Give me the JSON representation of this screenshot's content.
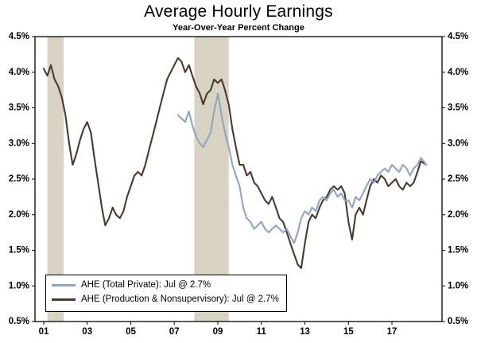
{
  "page": {
    "background": "#ffffff"
  },
  "chart_data": {
    "type": "line",
    "title": "Average Hourly Earnings",
    "subtitle": "Year-Over-Year Percent Change",
    "x_range": [
      2000.6,
      2019.3
    ],
    "y_range": [
      0.5,
      4.5
    ],
    "grid": false,
    "legend_position": "bottom-left",
    "y_ticks": [
      {
        "value": 0.5,
        "label": "0.5%"
      },
      {
        "value": 1.0,
        "label": "1.0%"
      },
      {
        "value": 1.5,
        "label": "1.5%"
      },
      {
        "value": 2.0,
        "label": "2.0%"
      },
      {
        "value": 2.5,
        "label": "2.5%"
      },
      {
        "value": 3.0,
        "label": "3.0%"
      },
      {
        "value": 3.5,
        "label": "3.5%"
      },
      {
        "value": 4.0,
        "label": "4.0%"
      },
      {
        "value": 4.5,
        "label": "4.5%"
      }
    ],
    "x_ticks": [
      {
        "value": 2001,
        "label": "01"
      },
      {
        "value": 2003,
        "label": "03"
      },
      {
        "value": 2005,
        "label": "05"
      },
      {
        "value": 2007,
        "label": "07"
      },
      {
        "value": 2009,
        "label": "09"
      },
      {
        "value": 2011,
        "label": "11"
      },
      {
        "value": 2013,
        "label": "13"
      },
      {
        "value": 2015,
        "label": "15"
      },
      {
        "value": 2017,
        "label": "17"
      }
    ],
    "colors": {
      "recession_band": "#d9d3c4",
      "axis": "#000000",
      "text": "#000000"
    },
    "recession_bands": [
      [
        2001.17,
        2001.92
      ],
      [
        2007.92,
        2009.5
      ]
    ],
    "series": [
      {
        "name": "AHE Total Private",
        "label": "AHE (Total Private): Jul @ 2.7%",
        "latest": "Jul @ 2.7%",
        "color": "#8ea6c3",
        "points": [
          [
            2007.17,
            3.4
          ],
          [
            2007.33,
            3.35
          ],
          [
            2007.5,
            3.3
          ],
          [
            2007.67,
            3.45
          ],
          [
            2007.83,
            3.25
          ],
          [
            2008.0,
            3.1
          ],
          [
            2008.17,
            3.0
          ],
          [
            2008.33,
            2.95
          ],
          [
            2008.5,
            3.05
          ],
          [
            2008.67,
            3.15
          ],
          [
            2008.83,
            3.45
          ],
          [
            2009.0,
            3.7
          ],
          [
            2009.17,
            3.4
          ],
          [
            2009.33,
            3.15
          ],
          [
            2009.5,
            2.95
          ],
          [
            2009.67,
            2.7
          ],
          [
            2009.83,
            2.55
          ],
          [
            2010.0,
            2.4
          ],
          [
            2010.17,
            2.1
          ],
          [
            2010.33,
            1.95
          ],
          [
            2010.5,
            1.9
          ],
          [
            2010.67,
            1.8
          ],
          [
            2010.83,
            1.85
          ],
          [
            2011.0,
            1.9
          ],
          [
            2011.17,
            1.8
          ],
          [
            2011.33,
            1.75
          ],
          [
            2011.5,
            1.8
          ],
          [
            2011.67,
            1.85
          ],
          [
            2011.83,
            1.8
          ],
          [
            2012.0,
            1.75
          ],
          [
            2012.17,
            1.8
          ],
          [
            2012.33,
            1.7
          ],
          [
            2012.5,
            1.6
          ],
          [
            2012.67,
            1.75
          ],
          [
            2012.83,
            1.95
          ],
          [
            2013.0,
            2.05
          ],
          [
            2013.17,
            2.0
          ],
          [
            2013.33,
            2.1
          ],
          [
            2013.5,
            2.05
          ],
          [
            2013.67,
            2.2
          ],
          [
            2013.83,
            2.25
          ],
          [
            2014.0,
            2.2
          ],
          [
            2014.17,
            2.3
          ],
          [
            2014.33,
            2.35
          ],
          [
            2014.5,
            2.25
          ],
          [
            2014.67,
            2.3
          ],
          [
            2014.83,
            2.2
          ],
          [
            2015.0,
            2.2
          ],
          [
            2015.17,
            2.1
          ],
          [
            2015.33,
            2.25
          ],
          [
            2015.5,
            2.2
          ],
          [
            2015.67,
            2.3
          ],
          [
            2015.83,
            2.4
          ],
          [
            2016.0,
            2.5
          ],
          [
            2016.17,
            2.45
          ],
          [
            2016.33,
            2.55
          ],
          [
            2016.5,
            2.6
          ],
          [
            2016.67,
            2.65
          ],
          [
            2016.83,
            2.6
          ],
          [
            2017.0,
            2.7
          ],
          [
            2017.17,
            2.65
          ],
          [
            2017.33,
            2.6
          ],
          [
            2017.5,
            2.7
          ],
          [
            2017.67,
            2.65
          ],
          [
            2017.83,
            2.55
          ],
          [
            2018.0,
            2.65
          ],
          [
            2018.17,
            2.7
          ],
          [
            2018.33,
            2.8
          ],
          [
            2018.58,
            2.7
          ]
        ]
      },
      {
        "name": "AHE Production & Nonsupervisory",
        "label": "AHE (Production & Nonsupervisory): Jul @ 2.7%",
        "latest": "Jul @ 2.7%",
        "color": "#493a2f",
        "points": [
          [
            2001.0,
            4.05
          ],
          [
            2001.17,
            3.95
          ],
          [
            2001.33,
            4.1
          ],
          [
            2001.5,
            3.9
          ],
          [
            2001.67,
            3.8
          ],
          [
            2001.83,
            3.65
          ],
          [
            2002.0,
            3.4
          ],
          [
            2002.17,
            3.0
          ],
          [
            2002.33,
            2.7
          ],
          [
            2002.5,
            2.85
          ],
          [
            2002.67,
            3.05
          ],
          [
            2002.83,
            3.2
          ],
          [
            2003.0,
            3.3
          ],
          [
            2003.17,
            3.15
          ],
          [
            2003.33,
            2.8
          ],
          [
            2003.5,
            2.45
          ],
          [
            2003.67,
            2.1
          ],
          [
            2003.83,
            1.85
          ],
          [
            2004.0,
            1.95
          ],
          [
            2004.17,
            2.1
          ],
          [
            2004.33,
            2.0
          ],
          [
            2004.5,
            1.95
          ],
          [
            2004.67,
            2.05
          ],
          [
            2004.83,
            2.25
          ],
          [
            2005.0,
            2.4
          ],
          [
            2005.17,
            2.55
          ],
          [
            2005.33,
            2.6
          ],
          [
            2005.5,
            2.55
          ],
          [
            2005.67,
            2.7
          ],
          [
            2005.83,
            2.9
          ],
          [
            2006.0,
            3.1
          ],
          [
            2006.17,
            3.3
          ],
          [
            2006.33,
            3.5
          ],
          [
            2006.5,
            3.7
          ],
          [
            2006.67,
            3.9
          ],
          [
            2006.83,
            4.0
          ],
          [
            2007.0,
            4.1
          ],
          [
            2007.17,
            4.2
          ],
          [
            2007.33,
            4.15
          ],
          [
            2007.5,
            4.0
          ],
          [
            2007.67,
            4.1
          ],
          [
            2007.83,
            3.95
          ],
          [
            2008.0,
            3.8
          ],
          [
            2008.17,
            3.7
          ],
          [
            2008.33,
            3.55
          ],
          [
            2008.5,
            3.7
          ],
          [
            2008.67,
            3.75
          ],
          [
            2008.83,
            3.9
          ],
          [
            2009.0,
            3.85
          ],
          [
            2009.17,
            3.9
          ],
          [
            2009.33,
            3.75
          ],
          [
            2009.5,
            3.55
          ],
          [
            2009.67,
            3.2
          ],
          [
            2009.83,
            2.95
          ],
          [
            2010.0,
            2.7
          ],
          [
            2010.17,
            2.7
          ],
          [
            2010.33,
            2.55
          ],
          [
            2010.5,
            2.6
          ],
          [
            2010.67,
            2.45
          ],
          [
            2010.83,
            2.4
          ],
          [
            2011.0,
            2.3
          ],
          [
            2011.17,
            2.2
          ],
          [
            2011.33,
            2.15
          ],
          [
            2011.5,
            2.25
          ],
          [
            2011.67,
            2.1
          ],
          [
            2011.83,
            1.95
          ],
          [
            2012.0,
            1.9
          ],
          [
            2012.17,
            1.75
          ],
          [
            2012.33,
            1.6
          ],
          [
            2012.5,
            1.45
          ],
          [
            2012.67,
            1.3
          ],
          [
            2012.83,
            1.25
          ],
          [
            2013.0,
            1.6
          ],
          [
            2013.17,
            1.9
          ],
          [
            2013.33,
            2.0
          ],
          [
            2013.5,
            1.95
          ],
          [
            2013.67,
            2.1
          ],
          [
            2013.83,
            2.2
          ],
          [
            2014.0,
            2.25
          ],
          [
            2014.17,
            2.35
          ],
          [
            2014.33,
            2.4
          ],
          [
            2014.5,
            2.35
          ],
          [
            2014.67,
            2.4
          ],
          [
            2014.83,
            2.3
          ],
          [
            2015.0,
            1.9
          ],
          [
            2015.17,
            1.65
          ],
          [
            2015.33,
            2.0
          ],
          [
            2015.5,
            2.1
          ],
          [
            2015.67,
            2.0
          ],
          [
            2015.83,
            2.2
          ],
          [
            2016.0,
            2.4
          ],
          [
            2016.17,
            2.5
          ],
          [
            2016.33,
            2.45
          ],
          [
            2016.5,
            2.55
          ],
          [
            2016.67,
            2.5
          ],
          [
            2016.83,
            2.4
          ],
          [
            2017.0,
            2.45
          ],
          [
            2017.17,
            2.5
          ],
          [
            2017.33,
            2.4
          ],
          [
            2017.5,
            2.35
          ],
          [
            2017.67,
            2.45
          ],
          [
            2017.83,
            2.4
          ],
          [
            2018.0,
            2.45
          ],
          [
            2018.17,
            2.6
          ],
          [
            2018.33,
            2.75
          ],
          [
            2018.58,
            2.7
          ]
        ]
      }
    ]
  }
}
